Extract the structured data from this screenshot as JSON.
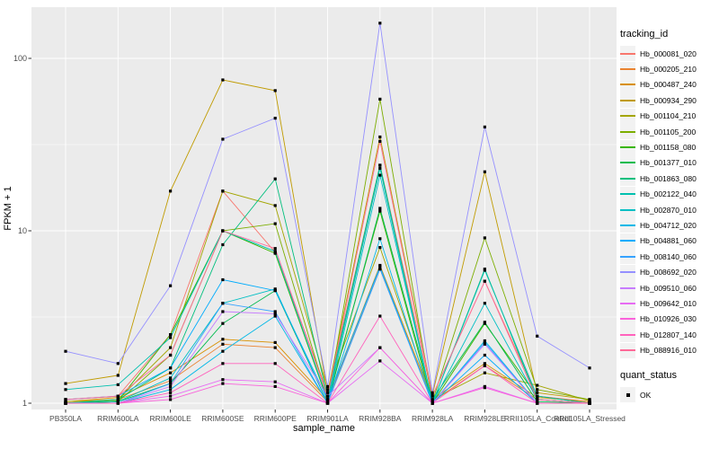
{
  "chart_data": {
    "type": "line",
    "title": "",
    "xlabel": "sample_name",
    "ylabel": "FPKM + 1",
    "yscale": "log10",
    "ylim": [
      0.93,
      198
    ],
    "yticks": [
      1,
      10,
      100
    ],
    "ytick_labels": [
      "1",
      "10",
      "100"
    ],
    "minor_yticks": [
      3.162,
      31.62
    ],
    "grid": true,
    "panel_bg": "#EBEBEB",
    "grid_color": "#FFFFFF",
    "point_color": "#000000",
    "tick_label_color": "#4D4D4D",
    "legend_position": "right",
    "categories": [
      "PB350LA",
      "RRIM600LA",
      "RRIM600LE",
      "RRIM600SE",
      "RRIM600PE",
      "RRIM901LA",
      "RRIM928BA",
      "RRIM928LA",
      "RRIM928LE",
      "RRII105LA_Control",
      "RRII105LA_Stressed"
    ],
    "series": [
      {
        "name": "Hb_000081_020",
        "color": "#F8766D",
        "values": [
          1.05,
          1.1,
          2.5,
          17.0,
          7.5,
          1.15,
          24.0,
          1.1,
          5.1,
          1.1,
          1.02
        ]
      },
      {
        "name": "Hb_000205_210",
        "color": "#EA8331",
        "values": [
          1.0,
          1.05,
          1.35,
          2.2,
          2.1,
          1.02,
          6.0,
          1.02,
          1.65,
          1.05,
          1.0
        ]
      },
      {
        "name": "Hb_000487_240",
        "color": "#D89000",
        "values": [
          1.02,
          1.08,
          1.5,
          2.35,
          2.25,
          1.05,
          6.3,
          1.05,
          1.7,
          1.08,
          1.02
        ]
      },
      {
        "name": "Hb_000934_290",
        "color": "#C09B00",
        "values": [
          1.3,
          1.45,
          17.0,
          75.0,
          65.0,
          1.15,
          35.0,
          1.12,
          22.0,
          1.15,
          1.05
        ]
      },
      {
        "name": "Hb_001104_210",
        "color": "#A3A500",
        "values": [
          1.02,
          1.05,
          2.1,
          17.0,
          14.0,
          1.2,
          8.0,
          1.05,
          1.5,
          1.27,
          1.03
        ]
      },
      {
        "name": "Hb_001105_200",
        "color": "#7CAE00",
        "values": [
          1.0,
          1.02,
          1.9,
          10.0,
          11.0,
          1.05,
          58.0,
          1.02,
          9.1,
          1.2,
          1.05
        ]
      },
      {
        "name": "Hb_001158_080",
        "color": "#39B600",
        "values": [
          1.0,
          1.03,
          2.5,
          10.0,
          7.4,
          1.03,
          13.0,
          1.0,
          2.9,
          1.1,
          1.0
        ]
      },
      {
        "name": "Hb_001377_010",
        "color": "#00BB4E",
        "values": [
          1.0,
          1.02,
          1.3,
          2.9,
          4.5,
          1.0,
          13.5,
          1.05,
          2.95,
          1.02,
          1.0
        ]
      },
      {
        "name": "Hb_001863_080",
        "color": "#00BF7D",
        "values": [
          1.0,
          1.05,
          1.6,
          8.3,
          20.0,
          1.1,
          24.0,
          1.0,
          6.0,
          1.05,
          1.0
        ]
      },
      {
        "name": "Hb_002122_040",
        "color": "#00C0AF",
        "values": [
          1.2,
          1.28,
          2.4,
          10.0,
          7.6,
          1.05,
          23.0,
          1.0,
          5.9,
          1.1,
          1.0
        ]
      },
      {
        "name": "Hb_002870_010",
        "color": "#00BFC4",
        "values": [
          1.0,
          1.02,
          1.4,
          3.8,
          4.6,
          1.0,
          21.0,
          1.0,
          3.8,
          1.05,
          1.0
        ]
      },
      {
        "name": "Hb_004712_020",
        "color": "#00B8E7",
        "values": [
          1.0,
          1.0,
          1.2,
          2.0,
          3.2,
          1.0,
          9.0,
          1.0,
          2.3,
          1.0,
          1.0
        ]
      },
      {
        "name": "Hb_004881_060",
        "color": "#00ACFC",
        "values": [
          1.05,
          1.1,
          1.6,
          5.2,
          4.5,
          1.05,
          6.2,
          1.0,
          1.9,
          1.0,
          1.0
        ]
      },
      {
        "name": "Hb_008140_060",
        "color": "#35A2FF",
        "values": [
          1.0,
          1.0,
          1.3,
          3.8,
          3.4,
          1.0,
          6.0,
          1.0,
          2.25,
          1.0,
          1.0
        ]
      },
      {
        "name": "Hb_008692_020",
        "color": "#9590FF",
        "values": [
          2.0,
          1.7,
          4.8,
          34.0,
          45.0,
          1.25,
          160.0,
          1.15,
          40.0,
          2.45,
          1.6
        ]
      },
      {
        "name": "Hb_009510_060",
        "color": "#C77CFF",
        "values": [
          1.0,
          1.0,
          1.25,
          3.4,
          3.3,
          1.1,
          2.1,
          1.0,
          2.2,
          1.0,
          1.0
        ]
      },
      {
        "name": "Hb_009642_010",
        "color": "#E76BF3",
        "values": [
          1.0,
          1.0,
          1.1,
          1.37,
          1.33,
          1.0,
          1.76,
          1.0,
          1.25,
          1.0,
          1.0
        ]
      },
      {
        "name": "Hb_010926_030",
        "color": "#FA62DB",
        "values": [
          1.0,
          1.0,
          1.05,
          1.3,
          1.25,
          1.0,
          2.1,
          1.0,
          1.23,
          1.0,
          1.0
        ]
      },
      {
        "name": "Hb_012807_140",
        "color": "#FF62BC",
        "values": [
          1.0,
          1.0,
          1.15,
          1.7,
          1.7,
          1.0,
          3.2,
          1.0,
          1.65,
          1.0,
          1.0
        ]
      },
      {
        "name": "Hb_088916_010",
        "color": "#FF6A98",
        "values": [
          1.05,
          1.1,
          1.9,
          10.0,
          7.9,
          1.1,
          33.0,
          1.1,
          5.1,
          1.05,
          1.0
        ]
      }
    ]
  },
  "legend": {
    "color_title": "tracking_id",
    "shape_title": "quant_status",
    "shape_items": [
      {
        "label": "OK"
      }
    ]
  }
}
